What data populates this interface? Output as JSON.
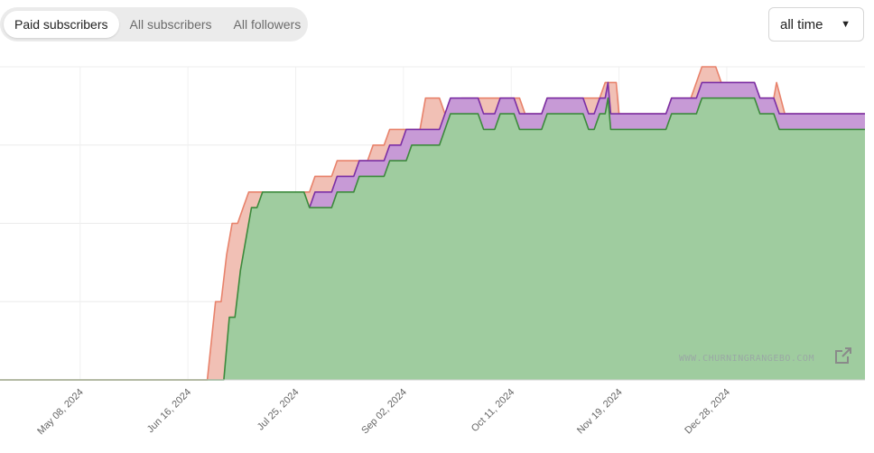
{
  "tabs": [
    {
      "label": "Paid subscribers",
      "active": true
    },
    {
      "label": "All subscribers",
      "active": false
    },
    {
      "label": "All followers",
      "active": false
    }
  ],
  "range_select": {
    "value": "all time"
  },
  "watermark": "WWW.CHURNINGRANGEBO.COM",
  "icons": {
    "external_link": "external-link-icon",
    "caret": "caret-down-icon"
  },
  "chart_data": {
    "type": "area",
    "x_ticks": [
      "May 08, 2024",
      "Jun 16, 2024",
      "Jul 25, 2024",
      "Sep 02, 2024",
      "Oct 11, 2024",
      "Nov 19, 2024",
      "Dec 28, 2024"
    ],
    "x_start": "2024-04-09",
    "x_end": "2025-02-16",
    "ylim": [
      0,
      20
    ],
    "grid": true,
    "stacked_overlay": true,
    "series": [
      {
        "color": "#e8826b",
        "fill": "#f1c0b5",
        "points": [
          [
            "2024-04-09",
            0
          ],
          [
            "2024-06-23",
            0
          ],
          [
            "2024-06-26",
            5
          ],
          [
            "2024-06-28",
            5
          ],
          [
            "2024-06-30",
            8
          ],
          [
            "2024-07-02",
            10
          ],
          [
            "2024-07-04",
            10
          ],
          [
            "2024-07-06",
            11
          ],
          [
            "2024-07-08",
            12
          ],
          [
            "2024-07-12",
            12
          ],
          [
            "2024-07-28",
            12
          ],
          [
            "2024-07-30",
            12
          ],
          [
            "2024-08-01",
            13
          ],
          [
            "2024-08-07",
            13
          ],
          [
            "2024-08-09",
            14
          ],
          [
            "2024-08-15",
            14
          ],
          [
            "2024-08-20",
            14
          ],
          [
            "2024-08-22",
            15
          ],
          [
            "2024-08-26",
            15
          ],
          [
            "2024-08-28",
            16
          ],
          [
            "2024-09-08",
            16
          ],
          [
            "2024-09-10",
            18
          ],
          [
            "2024-09-15",
            18
          ],
          [
            "2024-09-17",
            17
          ],
          [
            "2024-09-21",
            17
          ],
          [
            "2024-09-23",
            18
          ],
          [
            "2024-10-02",
            18
          ],
          [
            "2024-10-04",
            18
          ],
          [
            "2024-10-08",
            18
          ],
          [
            "2024-10-10",
            18
          ],
          [
            "2024-10-14",
            18
          ],
          [
            "2024-10-16",
            17
          ],
          [
            "2024-10-22",
            17
          ],
          [
            "2024-10-24",
            18
          ],
          [
            "2024-11-06",
            18
          ],
          [
            "2024-11-08",
            18
          ],
          [
            "2024-11-12",
            18
          ],
          [
            "2024-11-14",
            19
          ],
          [
            "2024-11-18",
            19
          ],
          [
            "2024-11-19",
            17
          ],
          [
            "2024-12-06",
            17
          ],
          [
            "2024-12-08",
            18
          ],
          [
            "2024-12-15",
            18
          ],
          [
            "2024-12-17",
            19
          ],
          [
            "2024-12-19",
            20
          ],
          [
            "2024-12-24",
            20
          ],
          [
            "2024-12-26",
            19
          ],
          [
            "2025-01-07",
            19
          ],
          [
            "2025-01-09",
            18
          ],
          [
            "2025-01-14",
            18
          ],
          [
            "2025-01-15",
            19
          ],
          [
            "2025-01-18",
            17
          ],
          [
            "2025-02-16",
            17
          ]
        ]
      },
      {
        "color": "#7b2fa5",
        "fill": "#c79ad6",
        "points": [
          [
            "2024-07-30",
            11
          ],
          [
            "2024-08-01",
            12
          ],
          [
            "2024-08-07",
            12
          ],
          [
            "2024-08-09",
            13
          ],
          [
            "2024-08-15",
            13
          ],
          [
            "2024-08-17",
            14
          ],
          [
            "2024-08-26",
            14
          ],
          [
            "2024-08-28",
            15
          ],
          [
            "2024-09-01",
            15
          ],
          [
            "2024-09-03",
            16
          ],
          [
            "2024-09-15",
            16
          ],
          [
            "2024-09-17",
            17
          ],
          [
            "2024-09-19",
            18
          ],
          [
            "2024-09-29",
            18
          ],
          [
            "2024-10-01",
            17
          ],
          [
            "2024-10-05",
            17
          ],
          [
            "2024-10-07",
            18
          ],
          [
            "2024-10-12",
            18
          ],
          [
            "2024-10-14",
            17
          ],
          [
            "2024-10-22",
            17
          ],
          [
            "2024-10-24",
            18
          ],
          [
            "2024-11-06",
            18
          ],
          [
            "2024-11-08",
            17
          ],
          [
            "2024-11-10",
            17
          ],
          [
            "2024-11-12",
            18
          ],
          [
            "2024-11-14",
            18
          ],
          [
            "2024-11-15",
            19
          ],
          [
            "2024-11-16",
            17
          ],
          [
            "2024-12-06",
            17
          ],
          [
            "2024-12-08",
            18
          ],
          [
            "2024-12-17",
            18
          ],
          [
            "2024-12-19",
            19
          ],
          [
            "2025-01-07",
            19
          ],
          [
            "2025-01-09",
            18
          ],
          [
            "2025-01-14",
            18
          ],
          [
            "2025-01-16",
            17
          ],
          [
            "2025-02-16",
            17
          ]
        ]
      },
      {
        "color": "#3c8a3c",
        "fill": "#9fcc9f",
        "points": [
          [
            "2024-04-09",
            0
          ],
          [
            "2024-06-29",
            0
          ],
          [
            "2024-07-01",
            4
          ],
          [
            "2024-07-03",
            4
          ],
          [
            "2024-07-05",
            7
          ],
          [
            "2024-07-07",
            9
          ],
          [
            "2024-07-09",
            11
          ],
          [
            "2024-07-11",
            11
          ],
          [
            "2024-07-13",
            12
          ],
          [
            "2024-07-28",
            12
          ],
          [
            "2024-07-30",
            11
          ],
          [
            "2024-08-07",
            11
          ],
          [
            "2024-08-09",
            12
          ],
          [
            "2024-08-15",
            12
          ],
          [
            "2024-08-17",
            13
          ],
          [
            "2024-08-26",
            13
          ],
          [
            "2024-08-28",
            14
          ],
          [
            "2024-09-03",
            14
          ],
          [
            "2024-09-05",
            15
          ],
          [
            "2024-09-15",
            15
          ],
          [
            "2024-09-17",
            16
          ],
          [
            "2024-09-19",
            17
          ],
          [
            "2024-09-29",
            17
          ],
          [
            "2024-10-01",
            16
          ],
          [
            "2024-10-05",
            16
          ],
          [
            "2024-10-07",
            17
          ],
          [
            "2024-10-12",
            17
          ],
          [
            "2024-10-14",
            16
          ],
          [
            "2024-10-22",
            16
          ],
          [
            "2024-10-24",
            17
          ],
          [
            "2024-11-06",
            17
          ],
          [
            "2024-11-08",
            16
          ],
          [
            "2024-11-10",
            16
          ],
          [
            "2024-11-12",
            17
          ],
          [
            "2024-11-14",
            17
          ],
          [
            "2024-11-15",
            18
          ],
          [
            "2024-11-16",
            16
          ],
          [
            "2024-12-06",
            16
          ],
          [
            "2024-12-08",
            17
          ],
          [
            "2024-12-17",
            17
          ],
          [
            "2024-12-19",
            18
          ],
          [
            "2025-01-07",
            18
          ],
          [
            "2025-01-09",
            17
          ],
          [
            "2025-01-14",
            17
          ],
          [
            "2025-01-16",
            16
          ],
          [
            "2025-02-16",
            16
          ]
        ]
      }
    ]
  }
}
